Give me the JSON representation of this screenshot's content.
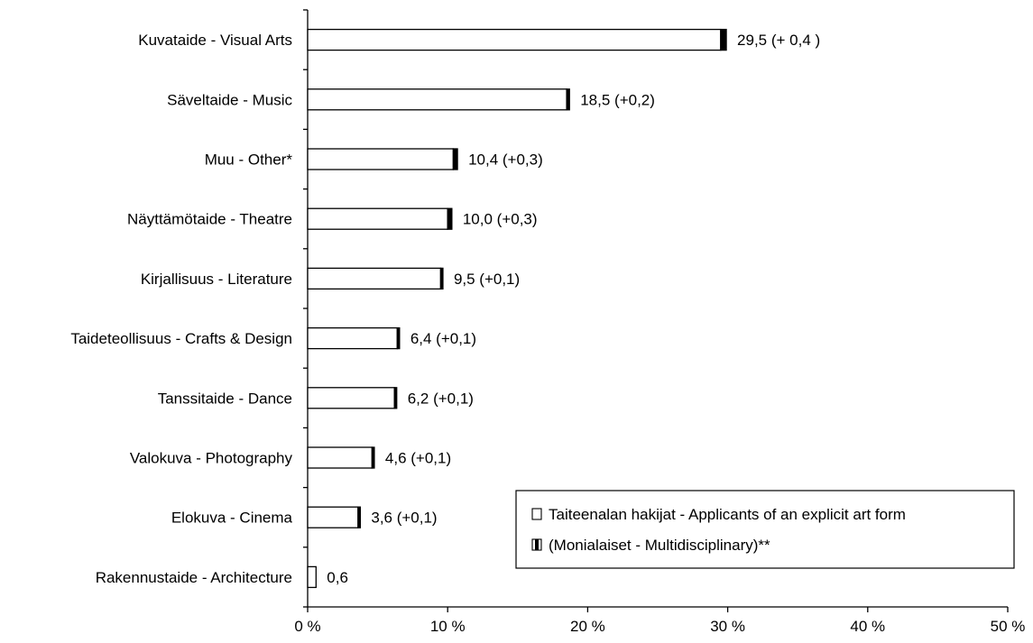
{
  "chart_data": {
    "type": "bar",
    "orientation": "horizontal",
    "stacked": true,
    "categories": [
      "Kuvataide - Visual Arts",
      "Säveltaide - Music",
      "Muu - Other*",
      "Näyttämötaide - Theatre",
      "Kirjallisuus - Literature",
      "Taideteollisuus - Crafts & Design",
      "Tanssitaide - Dance",
      "Valokuva - Photography",
      "Elokuva - Cinema",
      "Rakennustaide - Architecture"
    ],
    "series": [
      {
        "name": "Taiteenalan hakijat - Applicants of an explicit art form",
        "values": [
          29.5,
          18.5,
          10.4,
          10.0,
          9.5,
          6.4,
          6.2,
          4.6,
          3.6,
          0.6
        ],
        "color": "#ffffff"
      },
      {
        "name": "(Monialaiset - Multidisciplinary)**",
        "values": [
          0.4,
          0.2,
          0.3,
          0.3,
          0.1,
          0.1,
          0.1,
          0.1,
          0.1,
          0
        ],
        "color": "#000000"
      }
    ],
    "data_labels": [
      "29,5 (+ 0,4 )",
      "18,5 (+0,2)",
      "10,4 (+0,3)",
      "10,0 (+0,3)",
      "9,5 (+0,1)",
      "6,4 (+0,1)",
      "6,2 (+0,1)",
      "4,6 (+0,1)",
      "3,6 (+0,1)",
      "0,6"
    ],
    "xlim": [
      0,
      50
    ],
    "xticks": [
      0,
      10,
      20,
      30,
      40,
      50
    ],
    "xtick_labels": [
      "0 %",
      "10 %",
      "20 %",
      "30 %",
      "40 %",
      "50 %"
    ],
    "grid": false,
    "legend_position": "bottom-right",
    "title": "",
    "xlabel": "",
    "ylabel": ""
  }
}
